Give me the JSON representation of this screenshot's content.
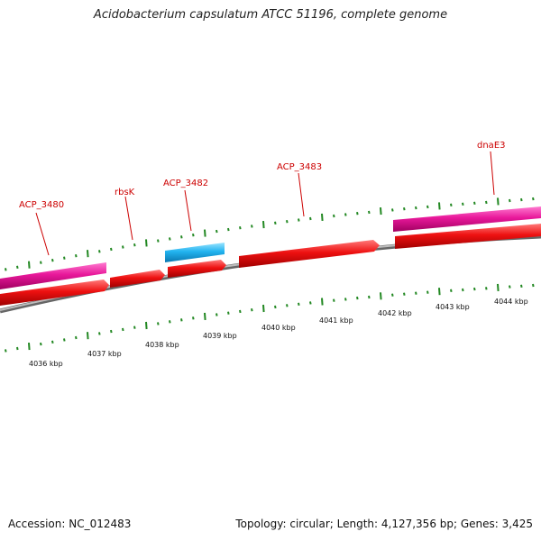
{
  "header": {
    "title": "Acidobacterium capsulatum ATCC 51196, complete genome"
  },
  "footer": {
    "accession": "Accession: NC_012483",
    "summary": "Topology: circular; Length: 4,127,356 bp; Genes: 3,425"
  },
  "colors": {
    "forward_gene": "#e0148c",
    "reverse_gene": "#ee1111",
    "rna_gene": "#22aaee",
    "backbone": "#888888",
    "ticks": "#228822",
    "labels": "#cc0000"
  },
  "genes": [
    {
      "label": "ACP_3480",
      "strand": "+",
      "type": "cds"
    },
    {
      "label": "rbsK",
      "strand": "-",
      "type": "cds"
    },
    {
      "label": "ACP_3482",
      "strand": "+",
      "type": "rna"
    },
    {
      "label": "ACP_3483",
      "strand": "-",
      "type": "cds"
    },
    {
      "label": "dnaE3",
      "strand": "+",
      "type": "cds"
    }
  ],
  "axis_labels": [
    "4036 kbp",
    "4037 kbp",
    "4038 kbp",
    "4039 kbp",
    "4040 kbp",
    "4041 kbp",
    "4042 kbp",
    "4043 kbp",
    "4044 kbp"
  ]
}
